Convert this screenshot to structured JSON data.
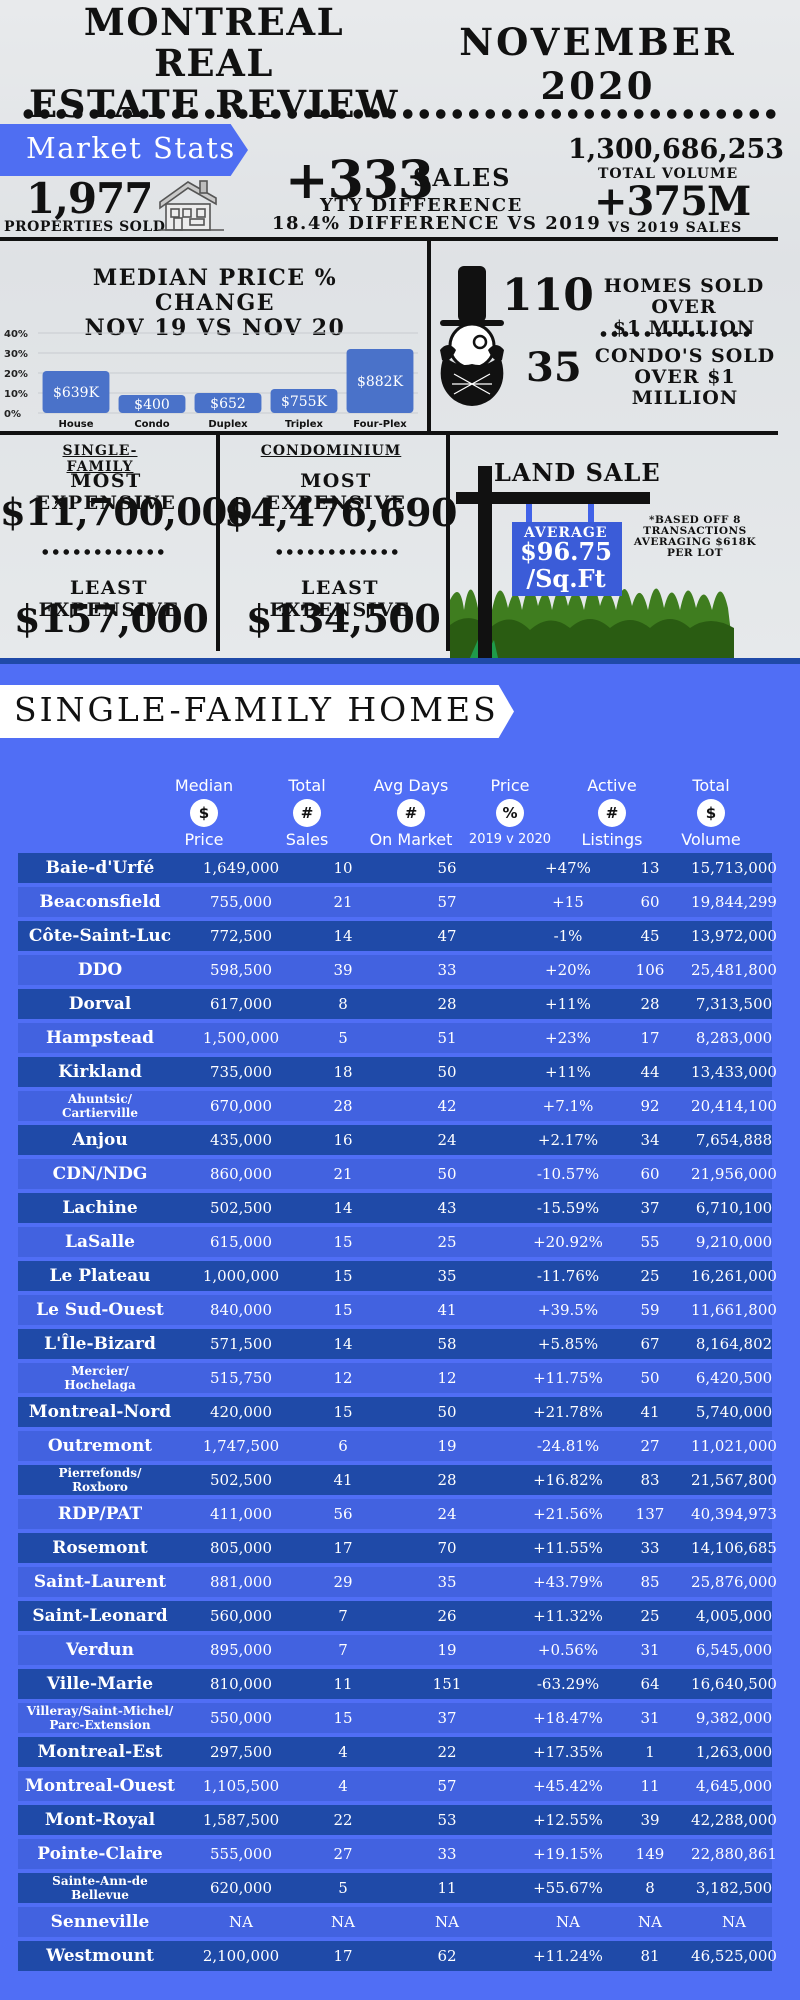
{
  "header": {
    "title_line1": "MONTREAL REAL",
    "title_line2": "ESTATE REVIEW",
    "period": "NOVEMBER 2020"
  },
  "market_stats": {
    "banner": "Market Stats",
    "properties_sold": "1,977",
    "properties_sold_label": "PROPERTIES SOLD",
    "sales_change": "+333",
    "sales_word": "SALES",
    "yty_label": "YTY DIFFERENCE",
    "pct_label": "18.4% DIFFERENCE VS 2019",
    "total_volume": "1,300,686,253",
    "total_volume_label": "TOTAL VOLUME",
    "volume_change": "+375M",
    "volume_change_label": "VS 2019 SALES"
  },
  "chart_data": {
    "type": "bar",
    "title": "MEDIAN PRICE % CHANGE NOV 19 VS NOV 20",
    "title_line1": "MEDIAN PRICE % CHANGE",
    "title_line2": "NOV 19 VS NOV 20",
    "categories": [
      "House",
      "Condo",
      "Duplex",
      "Triplex",
      "Four-Plex"
    ],
    "values": [
      21,
      9,
      10,
      12,
      32
    ],
    "data_labels": [
      "$639K",
      "$400",
      "$652",
      "$755K",
      "$882K"
    ],
    "y_ticks": [
      "0%",
      "10%",
      "20%",
      "30%",
      "40%"
    ],
    "ylim": [
      0,
      40
    ],
    "grid": true,
    "color": "#4a72c9"
  },
  "luxury": {
    "homes_count": "110",
    "homes_label_1": "HOMES SOLD OVER",
    "homes_label_2": "$1 MILLION",
    "condos_count": "35",
    "condos_label_1": "CONDO'S SOLD",
    "condos_label_2": "OVER $1 MILLION"
  },
  "single_family": {
    "heading": "SINGLE-FAMILY",
    "most_label": "MOST EXPENSIVE",
    "most_value": "$11,700,000",
    "least_label": "LEAST EXPENSIVE",
    "least_value": "$157,000"
  },
  "condominium": {
    "heading": "CONDOMINIUM",
    "most_label": "MOST EXPENSIVE",
    "most_value": "$4,476,690",
    "least_label": "LEAST EXPENSIVE",
    "least_value": "$134,500"
  },
  "land_sale": {
    "title": "LAND SALE",
    "avg_label": "AVERAGE",
    "avg_value_1": "$96.75",
    "avg_value_2": "/Sq.Ft",
    "note": "*BASED OFF 8 TRANSACTIONS AVERAGING $618K PER LOT"
  },
  "colors": {
    "blue_panel": "#506ef5",
    "dark_row": "#1f4aa8",
    "light_row": "#4262e0",
    "bar": "#4a72c9"
  },
  "sfh_table": {
    "banner": "SINGLE-FAMILY HOMES",
    "columns": [
      {
        "top": "Median",
        "icon": "$",
        "bottom": "Price"
      },
      {
        "top": "Total",
        "icon": "#",
        "bottom": "Sales"
      },
      {
        "top": "Avg Days",
        "icon": "#",
        "bottom": "On Market"
      },
      {
        "top": "Price",
        "icon": "%",
        "bottom": "2019 v 2020"
      },
      {
        "top": "Active",
        "icon": "#",
        "bottom": "Listings"
      },
      {
        "top": "Total",
        "icon": "$",
        "bottom": "Volume"
      }
    ],
    "rows": [
      {
        "name": "Baie-d'Urfé",
        "median": "1,649,000",
        "sales": "10",
        "days": "56",
        "pct": "+47%",
        "active": "13",
        "volume": "15,713,000"
      },
      {
        "name": "Beaconsfield",
        "median": "755,000",
        "sales": "21",
        "days": "57",
        "pct": "+15",
        "active": "60",
        "volume": "19,844,299"
      },
      {
        "name": "Côte-Saint-Luc",
        "median": "772,500",
        "sales": "14",
        "days": "47",
        "pct": "-1%",
        "active": "45",
        "volume": "13,972,000"
      },
      {
        "name": "DDO",
        "median": "598,500",
        "sales": "39",
        "days": "33",
        "pct": "+20%",
        "active": "106",
        "volume": "25,481,800"
      },
      {
        "name": "Dorval",
        "median": "617,000",
        "sales": "8",
        "days": "28",
        "pct": "+11%",
        "active": "28",
        "volume": "7,313,500"
      },
      {
        "name": "Hampstead",
        "median": "1,500,000",
        "sales": "5",
        "days": "51",
        "pct": "+23%",
        "active": "17",
        "volume": "8,283,000"
      },
      {
        "name": "Kirkland",
        "median": "735,000",
        "sales": "18",
        "days": "50",
        "pct": "+11%",
        "active": "44",
        "volume": "13,433,000"
      },
      {
        "name": "Ahuntsic/\nCartierville",
        "median": "670,000",
        "sales": "28",
        "days": "42",
        "pct": "+7.1%",
        "active": "92",
        "volume": "20,414,100"
      },
      {
        "name": "Anjou",
        "median": "435,000",
        "sales": "16",
        "days": "24",
        "pct": "+2.17%",
        "active": "34",
        "volume": "7,654,888"
      },
      {
        "name": "CDN/NDG",
        "median": "860,000",
        "sales": "21",
        "days": "50",
        "pct": "-10.57%",
        "active": "60",
        "volume": "21,956,000"
      },
      {
        "name": "Lachine",
        "median": "502,500",
        "sales": "14",
        "days": "43",
        "pct": "-15.59%",
        "active": "37",
        "volume": "6,710,100"
      },
      {
        "name": "LaSalle",
        "median": "615,000",
        "sales": "15",
        "days": "25",
        "pct": "+20.92%",
        "active": "55",
        "volume": "9,210,000"
      },
      {
        "name": "Le Plateau",
        "median": "1,000,000",
        "sales": "15",
        "days": "35",
        "pct": "-11.76%",
        "active": "25",
        "volume": "16,261,000"
      },
      {
        "name": "Le Sud-Ouest",
        "median": "840,000",
        "sales": "15",
        "days": "41",
        "pct": "+39.5%",
        "active": "59",
        "volume": "11,661,800"
      },
      {
        "name": "L'Île-Bizard",
        "median": "571,500",
        "sales": "14",
        "days": "58",
        "pct": "+5.85%",
        "active": "67",
        "volume": "8,164,802"
      },
      {
        "name": "Mercier/\nHochelaga",
        "median": "515,750",
        "sales": "12",
        "days": "12",
        "pct": "+11.75%",
        "active": "50",
        "volume": "6,420,500"
      },
      {
        "name": "Montreal-Nord",
        "median": "420,000",
        "sales": "15",
        "days": "50",
        "pct": "+21.78%",
        "active": "41",
        "volume": "5,740,000"
      },
      {
        "name": "Outremont",
        "median": "1,747,500",
        "sales": "6",
        "days": "19",
        "pct": "-24.81%",
        "active": "27",
        "volume": "11,021,000"
      },
      {
        "name": "Pierrefonds/\nRoxboro",
        "median": "502,500",
        "sales": "41",
        "days": "28",
        "pct": "+16.82%",
        "active": "83",
        "volume": "21,567,800"
      },
      {
        "name": "RDP/PAT",
        "median": "411,000",
        "sales": "56",
        "days": "24",
        "pct": "+21.56%",
        "active": "137",
        "volume": "40,394,973"
      },
      {
        "name": "Rosemont",
        "median": "805,000",
        "sales": "17",
        "days": "70",
        "pct": "+11.55%",
        "active": "33",
        "volume": "14,106,685"
      },
      {
        "name": "Saint-Laurent",
        "median": "881,000",
        "sales": "29",
        "days": "35",
        "pct": "+43.79%",
        "active": "85",
        "volume": "25,876,000"
      },
      {
        "name": "Saint-Leonard",
        "median": "560,000",
        "sales": "7",
        "days": "26",
        "pct": "+11.32%",
        "active": "25",
        "volume": "4,005,000"
      },
      {
        "name": "Verdun",
        "median": "895,000",
        "sales": "7",
        "days": "19",
        "pct": "+0.56%",
        "active": "31",
        "volume": "6,545,000"
      },
      {
        "name": "Ville-Marie",
        "median": "810,000",
        "sales": "11",
        "days": "151",
        "pct": "-63.29%",
        "active": "64",
        "volume": "16,640,500"
      },
      {
        "name": "Villeray/Saint-Michel/\nParc-Extension",
        "median": "550,000",
        "sales": "15",
        "days": "37",
        "pct": "+18.47%",
        "active": "31",
        "volume": "9,382,000"
      },
      {
        "name": "Montreal-Est",
        "median": "297,500",
        "sales": "4",
        "days": "22",
        "pct": "+17.35%",
        "active": "1",
        "volume": "1,263,000"
      },
      {
        "name": "Montreal-Ouest",
        "median": "1,105,500",
        "sales": "4",
        "days": "57",
        "pct": "+45.42%",
        "active": "11",
        "volume": "4,645,000"
      },
      {
        "name": "Mont-Royal",
        "median": "1,587,500",
        "sales": "22",
        "days": "53",
        "pct": "+12.55%",
        "active": "39",
        "volume": "42,288,000"
      },
      {
        "name": "Pointe-Claire",
        "median": "555,000",
        "sales": "27",
        "days": "33",
        "pct": "+19.15%",
        "active": "149",
        "volume": "22,880,861"
      },
      {
        "name": "Sainte-Ann-de\nBellevue",
        "median": "620,000",
        "sales": "5",
        "days": "11",
        "pct": "+55.67%",
        "active": "8",
        "volume": "3,182,500"
      },
      {
        "name": "Senneville",
        "median": "NA",
        "sales": "NA",
        "days": "NA",
        "pct": "NA",
        "active": "NA",
        "volume": "NA"
      },
      {
        "name": "Westmount",
        "median": "2,100,000",
        "sales": "17",
        "days": "62",
        "pct": "+11.24%",
        "active": "81",
        "volume": "46,525,000"
      }
    ]
  }
}
